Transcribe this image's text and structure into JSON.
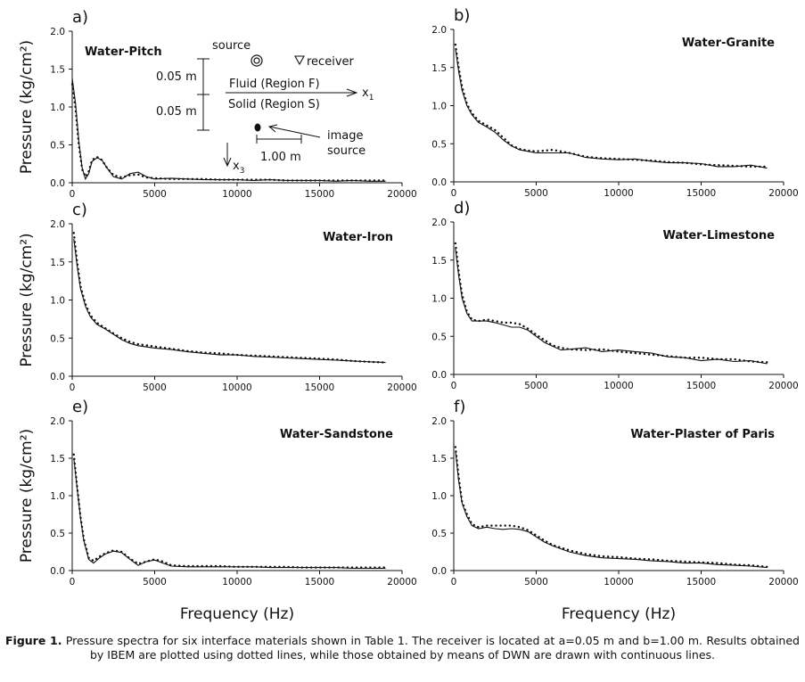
{
  "figure": {
    "shared_ylabel": "Pressure (kg/cm²)",
    "shared_xlabel": "Frequency (Hz)"
  },
  "inset": {
    "source": "source",
    "receiver": "receiver",
    "dim_top": "0.05 m",
    "dim_bottom": "0.05 m",
    "fluid": "Fluid (Region F)",
    "solid": "Solid (Region S)",
    "x1_axis": "x",
    "x1_sub": "1",
    "x3_axis": "x",
    "x3_sub": "3",
    "image_source_1": "image",
    "image_source_2": "source",
    "distance": "1.00 m"
  },
  "caption": {
    "label": "Figure 1.",
    "text": " Pressure spectra for six interface materials shown in Table 1. The receiver is located at a=0.05 m and b=1.00 m. Results obtained by IBEM are plotted using dotted lines, while those obtained by means of DWN are drawn with continuous lines."
  },
  "chart_data": [
    {
      "type": "line",
      "panel": "a)",
      "title": "Water-Pitch",
      "xlabel": "",
      "ylabel": "Pressure (kg/cm²)",
      "xlim": [
        0,
        20000
      ],
      "ylim": [
        0,
        2.0
      ],
      "xticks": [
        "0",
        "5000",
        "10000",
        "15000",
        "20000"
      ],
      "yticks": [
        "0.0",
        "0.5",
        "1.0",
        "1.5",
        "2.0"
      ],
      "x": [
        0,
        200,
        400,
        600,
        800,
        1000,
        1200,
        1500,
        1800,
        2100,
        2500,
        3000,
        3500,
        4000,
        4500,
        5000,
        6000,
        7000,
        8000,
        9000,
        10000,
        11000,
        12000,
        13000,
        14000,
        15000,
        16000,
        17000,
        18000,
        19000
      ],
      "series": [
        {
          "style": "solid",
          "values": [
            1.38,
            1.05,
            0.55,
            0.2,
            0.05,
            0.12,
            0.28,
            0.33,
            0.3,
            0.2,
            0.08,
            0.05,
            0.12,
            0.14,
            0.08,
            0.05,
            0.06,
            0.05,
            0.04,
            0.04,
            0.04,
            0.03,
            0.04,
            0.03,
            0.03,
            0.03,
            0.02,
            0.03,
            0.02,
            0.02
          ]
        },
        {
          "style": "dotted",
          "values": [
            1.3,
            0.98,
            0.5,
            0.18,
            0.08,
            0.15,
            0.3,
            0.34,
            0.3,
            0.2,
            0.1,
            0.07,
            0.1,
            0.11,
            0.07,
            0.06,
            0.05,
            0.05,
            0.05,
            0.04,
            0.04,
            0.04,
            0.04,
            0.03,
            0.03,
            0.03,
            0.03,
            0.03,
            0.03,
            0.03
          ]
        }
      ]
    },
    {
      "type": "line",
      "panel": "b)",
      "title": "Water-Granite",
      "xlabel": "",
      "ylabel": "",
      "xlim": [
        0,
        20000
      ],
      "ylim": [
        0,
        2.0
      ],
      "xticks": [
        "0",
        "5000",
        "10000",
        "15000",
        "20000"
      ],
      "yticks": [
        "0.0",
        "0.5",
        "1.0",
        "1.5",
        "2.0"
      ],
      "x": [
        100,
        300,
        500,
        800,
        1100,
        1500,
        2000,
        2500,
        3000,
        3500,
        4000,
        4500,
        5000,
        6000,
        7000,
        8000,
        9000,
        10000,
        11000,
        12000,
        13000,
        14000,
        15000,
        16000,
        17000,
        18000,
        19000
      ],
      "series": [
        {
          "style": "solid",
          "values": [
            1.75,
            1.45,
            1.2,
            1.0,
            0.88,
            0.78,
            0.72,
            0.65,
            0.55,
            0.47,
            0.42,
            0.4,
            0.38,
            0.38,
            0.38,
            0.32,
            0.3,
            0.29,
            0.3,
            0.27,
            0.25,
            0.25,
            0.24,
            0.2,
            0.2,
            0.22,
            0.18
          ]
        },
        {
          "style": "dotted",
          "values": [
            1.8,
            1.5,
            1.25,
            1.02,
            0.9,
            0.8,
            0.74,
            0.68,
            0.58,
            0.48,
            0.43,
            0.41,
            0.4,
            0.42,
            0.38,
            0.33,
            0.31,
            0.3,
            0.29,
            0.28,
            0.26,
            0.25,
            0.23,
            0.22,
            0.21,
            0.2,
            0.2
          ]
        }
      ]
    },
    {
      "type": "line",
      "panel": "c)",
      "title": "Water-Iron",
      "xlabel": "",
      "ylabel": "Pressure (kg/cm²)",
      "xlim": [
        0,
        20000
      ],
      "ylim": [
        0,
        2.0
      ],
      "xticks": [
        "0",
        "5000",
        "10000",
        "15000",
        "20000"
      ],
      "yticks": [
        "0.0",
        "0.5",
        "1.0",
        "1.5",
        "2.0"
      ],
      "x": [
        100,
        300,
        500,
        800,
        1100,
        1500,
        2000,
        2500,
        3000,
        3500,
        4000,
        5000,
        6000,
        7000,
        8000,
        9000,
        10000,
        11000,
        12000,
        13000,
        14000,
        15000,
        16000,
        17000,
        18000,
        19000
      ],
      "series": [
        {
          "style": "solid",
          "values": [
            1.8,
            1.45,
            1.15,
            0.92,
            0.78,
            0.68,
            0.62,
            0.55,
            0.48,
            0.43,
            0.4,
            0.37,
            0.35,
            0.32,
            0.3,
            0.28,
            0.28,
            0.26,
            0.25,
            0.24,
            0.23,
            0.22,
            0.21,
            0.2,
            0.19,
            0.18
          ]
        },
        {
          "style": "dotted",
          "values": [
            1.88,
            1.5,
            1.18,
            0.95,
            0.8,
            0.7,
            0.63,
            0.56,
            0.5,
            0.45,
            0.42,
            0.39,
            0.36,
            0.33,
            0.31,
            0.3,
            0.28,
            0.27,
            0.26,
            0.25,
            0.24,
            0.23,
            0.22,
            0.2,
            0.19,
            0.18
          ]
        }
      ]
    },
    {
      "type": "line",
      "panel": "d)",
      "title": "Water-Limestone",
      "xlabel": "",
      "ylabel": "",
      "xlim": [
        0,
        20000
      ],
      "ylim": [
        0,
        2.0
      ],
      "xticks": [
        "0",
        "5000",
        "10000",
        "15000",
        "20000"
      ],
      "yticks": [
        "0.0",
        "0.5",
        "1.0",
        "1.5",
        "2.0"
      ],
      "x": [
        100,
        300,
        500,
        800,
        1100,
        1500,
        2000,
        2500,
        3000,
        3500,
        4000,
        4500,
        5000,
        5500,
        6000,
        6500,
        7000,
        8000,
        9000,
        10000,
        11000,
        12000,
        13000,
        14000,
        15000,
        16000,
        17000,
        18000,
        19000
      ],
      "series": [
        {
          "style": "solid",
          "values": [
            1.65,
            1.3,
            1.0,
            0.8,
            0.7,
            0.7,
            0.7,
            0.68,
            0.65,
            0.62,
            0.62,
            0.58,
            0.5,
            0.42,
            0.37,
            0.32,
            0.33,
            0.35,
            0.3,
            0.32,
            0.3,
            0.28,
            0.23,
            0.22,
            0.18,
            0.2,
            0.17,
            0.18,
            0.14
          ]
        },
        {
          "style": "dotted",
          "values": [
            1.72,
            1.35,
            1.05,
            0.82,
            0.72,
            0.7,
            0.72,
            0.7,
            0.68,
            0.68,
            0.66,
            0.6,
            0.52,
            0.45,
            0.38,
            0.35,
            0.33,
            0.32,
            0.33,
            0.3,
            0.28,
            0.26,
            0.24,
            0.22,
            0.22,
            0.2,
            0.2,
            0.17,
            0.16
          ]
        }
      ]
    },
    {
      "type": "line",
      "panel": "e)",
      "title": "Water-Sandstone",
      "xlabel": "Frequency (Hz)",
      "ylabel": "Pressure (kg/cm²)",
      "xlim": [
        0,
        20000
      ],
      "ylim": [
        0,
        2.0
      ],
      "xticks": [
        "0",
        "5000",
        "10000",
        "15000",
        "20000"
      ],
      "yticks": [
        "0.0",
        "0.5",
        "1.0",
        "1.5",
        "2.0"
      ],
      "x": [
        100,
        300,
        500,
        700,
        1000,
        1300,
        1600,
        2000,
        2500,
        3000,
        3500,
        4000,
        4500,
        5000,
        5500,
        6000,
        7000,
        8000,
        9000,
        10000,
        11000,
        12000,
        13000,
        14000,
        15000,
        16000,
        17000,
        18000,
        19000
      ],
      "series": [
        {
          "style": "solid",
          "values": [
            1.5,
            1.1,
            0.7,
            0.4,
            0.15,
            0.1,
            0.16,
            0.22,
            0.26,
            0.24,
            0.15,
            0.07,
            0.12,
            0.14,
            0.1,
            0.06,
            0.05,
            0.05,
            0.05,
            0.05,
            0.05,
            0.04,
            0.04,
            0.04,
            0.04,
            0.04,
            0.03,
            0.03,
            0.03
          ]
        },
        {
          "style": "dotted",
          "values": [
            1.55,
            1.12,
            0.72,
            0.42,
            0.17,
            0.13,
            0.18,
            0.23,
            0.27,
            0.25,
            0.16,
            0.09,
            0.12,
            0.15,
            0.12,
            0.07,
            0.06,
            0.06,
            0.06,
            0.05,
            0.05,
            0.05,
            0.05,
            0.04,
            0.04,
            0.04,
            0.04,
            0.04,
            0.04
          ]
        }
      ]
    },
    {
      "type": "line",
      "panel": "f)",
      "title": "Water-Plaster of Paris",
      "xlabel": "Frequency (Hz)",
      "ylabel": "",
      "xlim": [
        0,
        20000
      ],
      "ylim": [
        0,
        2.0
      ],
      "xticks": [
        "0",
        "5000",
        "10000",
        "15000",
        "20000"
      ],
      "yticks": [
        "0.0",
        "0.5",
        "1.0",
        "1.5",
        "2.0"
      ],
      "x": [
        100,
        300,
        500,
        800,
        1100,
        1500,
        2000,
        2500,
        3000,
        3500,
        4000,
        4500,
        5000,
        5500,
        6000,
        7000,
        8000,
        9000,
        10000,
        11000,
        12000,
        13000,
        14000,
        15000,
        16000,
        17000,
        18000,
        19000
      ],
      "series": [
        {
          "style": "solid",
          "values": [
            1.6,
            1.2,
            0.9,
            0.72,
            0.6,
            0.56,
            0.58,
            0.56,
            0.55,
            0.56,
            0.55,
            0.52,
            0.45,
            0.38,
            0.33,
            0.25,
            0.2,
            0.17,
            0.16,
            0.15,
            0.13,
            0.12,
            0.1,
            0.1,
            0.08,
            0.07,
            0.06,
            0.04
          ]
        },
        {
          "style": "dotted",
          "values": [
            1.65,
            1.25,
            0.92,
            0.75,
            0.62,
            0.58,
            0.6,
            0.6,
            0.6,
            0.6,
            0.58,
            0.54,
            0.47,
            0.4,
            0.34,
            0.27,
            0.22,
            0.19,
            0.18,
            0.16,
            0.15,
            0.13,
            0.12,
            0.11,
            0.1,
            0.08,
            0.07,
            0.05
          ]
        }
      ]
    }
  ]
}
